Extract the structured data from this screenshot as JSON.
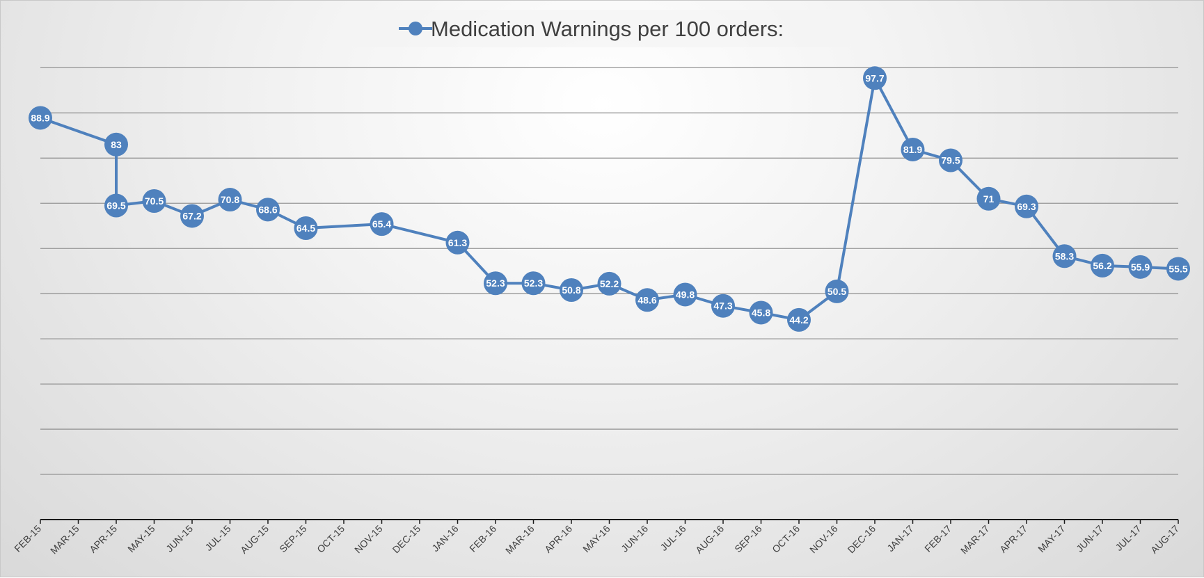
{
  "chart_data": {
    "type": "line",
    "title": "",
    "xlabel": "",
    "ylabel": "",
    "ylim": [
      0,
      110
    ],
    "grid": true,
    "legend_position": "top",
    "colors": {
      "series": "#4f81bd",
      "label_text": "#ffffff",
      "grid": "#8c8c8c",
      "axis": "#1a1a1a"
    },
    "categories": [
      "FEB-15",
      "MAR-15",
      "APR-15",
      "MAY-15",
      "JUN-15",
      "JUL-15",
      "AUG-15",
      "SEP-15",
      "OCT-15",
      "NOV-15",
      "DEC-15",
      "JAN-16",
      "FEB-16",
      "MAR-16",
      "APR-16",
      "MAY-16",
      "JUN-16",
      "JUL-16",
      "AUG-16",
      "SEP-16",
      "OCT-16",
      "NOV-16",
      "DEC-16",
      "JAN-17",
      "FEB-17",
      "MAR-17",
      "APR-17",
      "MAY-17",
      "JUN-17",
      "JUL-17",
      "AUG-17"
    ],
    "series": [
      {
        "name": "Medication Warnings per 100 orders:",
        "points": [
          {
            "x": "FEB-15",
            "y": 88.9,
            "label": "88.9"
          },
          {
            "x": "APR-15",
            "y": 83,
            "label": "83"
          },
          {
            "x": "APR-15",
            "y": 69.5,
            "label": "69.5"
          },
          {
            "x": "MAY-15",
            "y": 70.5,
            "label": "70.5"
          },
          {
            "x": "JUN-15",
            "y": 67.2,
            "label": "67.2"
          },
          {
            "x": "JUL-15",
            "y": 70.8,
            "label": "70.8"
          },
          {
            "x": "AUG-15",
            "y": 68.6,
            "label": "68.6"
          },
          {
            "x": "SEP-15",
            "y": 64.5,
            "label": "64.5"
          },
          {
            "x": "NOV-15",
            "y": 65.4,
            "label": "65.4"
          },
          {
            "x": "JAN-16",
            "y": 61.3,
            "label": "61.3"
          },
          {
            "x": "FEB-16",
            "y": 52.3,
            "label": "52.3"
          },
          {
            "x": "MAR-16",
            "y": 52.3,
            "label": "52.3"
          },
          {
            "x": "APR-16",
            "y": 50.8,
            "label": "50.8"
          },
          {
            "x": "MAY-16",
            "y": 52.2,
            "label": "52.2"
          },
          {
            "x": "JUN-16",
            "y": 48.6,
            "label": "48.6"
          },
          {
            "x": "JUL-16",
            "y": 49.8,
            "label": "49.8"
          },
          {
            "x": "AUG-16",
            "y": 47.3,
            "label": "47.3"
          },
          {
            "x": "SEP-16",
            "y": 45.8,
            "label": "45.8"
          },
          {
            "x": "OCT-16",
            "y": 44.2,
            "label": "44.2"
          },
          {
            "x": "NOV-16",
            "y": 50.5,
            "label": "50.5"
          },
          {
            "x": "DEC-16",
            "y": 97.7,
            "label": "97.7"
          },
          {
            "x": "JAN-17",
            "y": 81.9,
            "label": "81.9"
          },
          {
            "x": "FEB-17",
            "y": 79.5,
            "label": "79.5"
          },
          {
            "x": "MAR-17",
            "y": 71,
            "label": "71"
          },
          {
            "x": "APR-17",
            "y": 69.3,
            "label": "69.3"
          },
          {
            "x": "MAY-17",
            "y": 58.3,
            "label": "58.3"
          },
          {
            "x": "JUN-17",
            "y": 56.2,
            "label": "56.2"
          },
          {
            "x": "JUL-17",
            "y": 55.9,
            "label": "55.9"
          },
          {
            "x": "AUG-17",
            "y": 55.5,
            "label": "55.5"
          }
        ]
      }
    ]
  }
}
